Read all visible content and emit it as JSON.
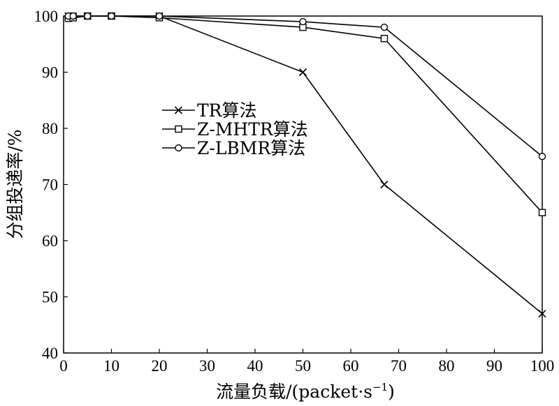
{
  "chart_data": {
    "type": "line",
    "title": "",
    "xlabel": "流量负载/(packet·s",
    "xlabel_sup": "−1",
    "xlabel_close": ")",
    "ylabel": "分组投递率/%",
    "xlim": [
      0,
      100
    ],
    "ylim": [
      40,
      100
    ],
    "x_ticks": [
      "0",
      "10",
      "20",
      "30",
      "40",
      "50",
      "60",
      "70",
      "80",
      "90",
      "100"
    ],
    "y_ticks": [
      "40",
      "50",
      "60",
      "70",
      "80",
      "90",
      "100"
    ],
    "grid": false,
    "legend_position": "center-left",
    "series": [
      {
        "name": "TR算法",
        "marker": "x",
        "x": [
          1,
          2,
          5,
          10,
          20,
          50,
          67,
          100
        ],
        "y": [
          100,
          100,
          100,
          100,
          100,
          90,
          70,
          47
        ]
      },
      {
        "name": "Z-MHTR算法",
        "marker": "square",
        "x": [
          1,
          2,
          5,
          10,
          20,
          50,
          67,
          100
        ],
        "y": [
          99.6,
          99.7,
          100,
          100,
          99.7,
          98,
          96,
          65
        ]
      },
      {
        "name": "Z-LBMR算法",
        "marker": "circle",
        "x": [
          1,
          2,
          5,
          10,
          20,
          50,
          67,
          100
        ],
        "y": [
          100,
          100,
          100,
          100,
          100,
          99,
          98,
          75
        ]
      }
    ]
  }
}
